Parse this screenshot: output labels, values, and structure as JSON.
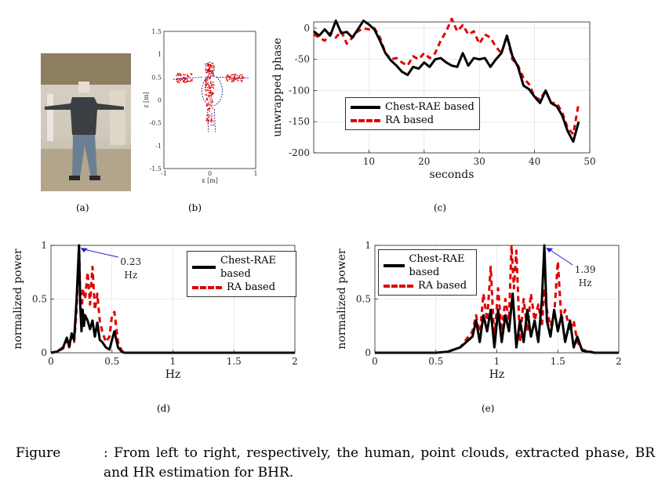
{
  "panel_labels": {
    "a": "(a)",
    "b": "(b)",
    "c": "(c)",
    "d": "(d)",
    "e": "(e)"
  },
  "caption": {
    "label": "Figure",
    "text": ": From left to right, respectively, the human, point clouds, extracted phase, BR and HR estimation for BHR."
  },
  "colors": {
    "chest": "#000000",
    "ra": "#e00000",
    "annotation": "#1f1fd6"
  },
  "chart_data": [
    {
      "id": "b",
      "type": "scatter",
      "xlabel": "x [m]",
      "ylabel": "z [m]",
      "xlim": [
        -1,
        1
      ],
      "ylim": [
        -1.5,
        1.5
      ],
      "xticks": [
        "-1",
        "0",
        "1"
      ],
      "yticks": [
        "-1.5",
        "-1",
        "-0.5",
        "0",
        "0.5",
        "1",
        "1.5"
      ],
      "points_description": "red point cloud of a standing person with arms stretched out, blue skeleton overlay"
    },
    {
      "id": "c",
      "type": "line",
      "xlabel": "seconds",
      "ylabel": "unwrapped phase",
      "xlim": [
        0,
        50
      ],
      "ylim": [
        -200,
        10
      ],
      "xticks": [
        "10",
        "20",
        "30",
        "40",
        "50"
      ],
      "yticks": [
        "0",
        "-50",
        "-100",
        "-150",
        "-200"
      ],
      "legend": [
        "Chest-RAE based",
        "RA based"
      ],
      "series": [
        {
          "name": "Chest-RAE based",
          "x": [
            0,
            1,
            2,
            3,
            4,
            5,
            6,
            7,
            8,
            9,
            10,
            11,
            12,
            13,
            14,
            15,
            16,
            17,
            18,
            19,
            20,
            21,
            22,
            23,
            24,
            25,
            26,
            27,
            28,
            29,
            30,
            31,
            32,
            33,
            34,
            35,
            36,
            37,
            38,
            39,
            40,
            41,
            42,
            43,
            44,
            45,
            46,
            47,
            48
          ],
          "y": [
            -5,
            -12,
            -2,
            -12,
            12,
            -8,
            -6,
            -15,
            -2,
            12,
            6,
            -2,
            -20,
            -40,
            -52,
            -60,
            -70,
            -75,
            -62,
            -65,
            -55,
            -62,
            -50,
            -48,
            -55,
            -60,
            -62,
            -40,
            -60,
            -48,
            -50,
            -48,
            -62,
            -50,
            -40,
            -12,
            -45,
            -62,
            -92,
            -98,
            -110,
            -120,
            -100,
            -120,
            -125,
            -140,
            -165,
            -182,
            -150
          ]
        },
        {
          "name": "RA based",
          "x": [
            0,
            1,
            2,
            3,
            4,
            5,
            6,
            7,
            8,
            9,
            10,
            11,
            12,
            13,
            14,
            15,
            16,
            17,
            18,
            19,
            20,
            21,
            22,
            23,
            24,
            25,
            26,
            27,
            28,
            29,
            30,
            31,
            32,
            33,
            34,
            35,
            36,
            37,
            38,
            39,
            40,
            41,
            42,
            43,
            44,
            45,
            46,
            47,
            48
          ],
          "y": [
            -10,
            -15,
            -20,
            -8,
            -15,
            -5,
            -25,
            -15,
            -5,
            0,
            -2,
            0,
            -15,
            -40,
            -50,
            -48,
            -55,
            -60,
            -45,
            -50,
            -40,
            -48,
            -40,
            -20,
            -5,
            15,
            -5,
            5,
            -10,
            -5,
            -25,
            -10,
            -15,
            -30,
            -40,
            -12,
            -50,
            -60,
            -80,
            -90,
            -110,
            -115,
            -100,
            -120,
            -120,
            -135,
            -160,
            -170,
            -120
          ]
        }
      ]
    },
    {
      "id": "d",
      "type": "line",
      "xlabel": "Hz",
      "ylabel": "normalized power",
      "xlim": [
        0,
        2
      ],
      "ylim": [
        0,
        1
      ],
      "xticks": [
        "0",
        "0.5",
        "1",
        "1.5",
        "2"
      ],
      "yticks": [
        "0",
        "0.5",
        "1"
      ],
      "legend": [
        "Chest-RAE based",
        "RA based"
      ],
      "annotation": {
        "text": "0.23",
        "unit": "Hz",
        "x": 0.23,
        "y": 1
      },
      "series": [
        {
          "name": "Chest-RAE based",
          "x": [
            0,
            0.05,
            0.1,
            0.13,
            0.15,
            0.17,
            0.19,
            0.21,
            0.22,
            0.23,
            0.24,
            0.25,
            0.26,
            0.27,
            0.28,
            0.3,
            0.32,
            0.34,
            0.36,
            0.38,
            0.4,
            0.42,
            0.45,
            0.48,
            0.5,
            0.52,
            0.55,
            0.58,
            0.6,
            0.7,
            0.8,
            1,
            1.5,
            2
          ],
          "y": [
            0,
            0.01,
            0.05,
            0.14,
            0.06,
            0.18,
            0.12,
            0.5,
            0.75,
            1,
            0.45,
            0.2,
            0.4,
            0.25,
            0.35,
            0.3,
            0.22,
            0.3,
            0.15,
            0.28,
            0.12,
            0.1,
            0.05,
            0.03,
            0.12,
            0.2,
            0.05,
            0.01,
            0,
            0,
            0,
            0,
            0,
            0
          ]
        },
        {
          "name": "RA based",
          "x": [
            0,
            0.05,
            0.1,
            0.13,
            0.15,
            0.17,
            0.19,
            0.21,
            0.22,
            0.23,
            0.24,
            0.25,
            0.26,
            0.28,
            0.3,
            0.32,
            0.34,
            0.36,
            0.38,
            0.4,
            0.42,
            0.45,
            0.48,
            0.5,
            0.52,
            0.55,
            0.58,
            0.6,
            0.7,
            0.8,
            1,
            1.5,
            2
          ],
          "y": [
            0,
            0.01,
            0.04,
            0.12,
            0.05,
            0.15,
            0.1,
            0.4,
            0.7,
            1,
            0.5,
            0.3,
            0.6,
            0.5,
            0.75,
            0.45,
            0.8,
            0.4,
            0.55,
            0.3,
            0.2,
            0.1,
            0.15,
            0.35,
            0.38,
            0.1,
            0.02,
            0,
            0,
            0,
            0,
            0,
            0
          ]
        }
      ]
    },
    {
      "id": "e",
      "type": "line",
      "xlabel": "Hz",
      "ylabel": "normalized power",
      "xlim": [
        0,
        2
      ],
      "ylim": [
        0,
        1
      ],
      "xticks": [
        "0",
        "0.5",
        "1",
        "1.5",
        "2"
      ],
      "yticks": [
        "0",
        "0.5",
        "1"
      ],
      "legend": [
        "Chest-RAE based",
        "RA based"
      ],
      "annotation": {
        "text": "1.39",
        "unit": "Hz",
        "x": 1.39,
        "y": 1
      },
      "series": [
        {
          "name": "Chest-RAE based",
          "x": [
            0,
            0.5,
            0.6,
            0.7,
            0.8,
            0.83,
            0.86,
            0.89,
            0.92,
            0.95,
            0.98,
            1.01,
            1.04,
            1.07,
            1.1,
            1.13,
            1.16,
            1.19,
            1.22,
            1.25,
            1.28,
            1.31,
            1.34,
            1.37,
            1.39,
            1.41,
            1.44,
            1.47,
            1.5,
            1.53,
            1.56,
            1.6,
            1.63,
            1.66,
            1.7,
            1.8,
            2
          ],
          "y": [
            0,
            0,
            0.01,
            0.05,
            0.15,
            0.3,
            0.1,
            0.35,
            0.2,
            0.4,
            0.05,
            0.4,
            0.1,
            0.35,
            0.2,
            0.55,
            0.05,
            0.3,
            0.1,
            0.4,
            0.15,
            0.3,
            0.1,
            0.5,
            1,
            0.3,
            0.15,
            0.4,
            0.2,
            0.35,
            0.1,
            0.3,
            0.05,
            0.15,
            0.02,
            0,
            0
          ]
        },
        {
          "name": "RA based",
          "x": [
            0,
            0.5,
            0.6,
            0.7,
            0.8,
            0.83,
            0.86,
            0.89,
            0.92,
            0.95,
            0.98,
            1.01,
            1.04,
            1.07,
            1.1,
            1.12,
            1.14,
            1.16,
            1.19,
            1.22,
            1.25,
            1.28,
            1.31,
            1.34,
            1.37,
            1.39,
            1.41,
            1.44,
            1.47,
            1.5,
            1.53,
            1.56,
            1.6,
            1.63,
            1.66,
            1.7,
            1.8,
            2
          ],
          "y": [
            0,
            0,
            0.01,
            0.05,
            0.2,
            0.35,
            0.15,
            0.55,
            0.3,
            0.8,
            0.1,
            0.6,
            0.2,
            0.5,
            0.3,
            1,
            0.6,
            0.95,
            0.1,
            0.5,
            0.2,
            0.55,
            0.3,
            0.45,
            0.25,
            0.6,
            0.4,
            0.25,
            0.35,
            0.85,
            0.3,
            0.4,
            0.2,
            0.3,
            0.1,
            0.03,
            0,
            0
          ]
        }
      ]
    }
  ]
}
